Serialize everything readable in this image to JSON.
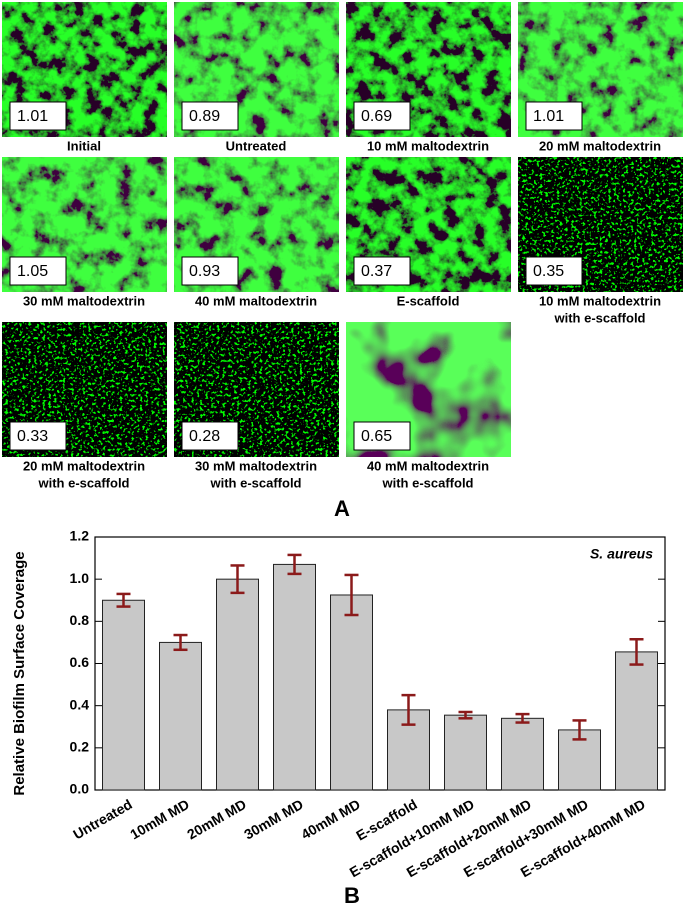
{
  "panel_a": {
    "label": "A",
    "images": [
      {
        "value_label": "1.01",
        "caption": [
          "Initial"
        ]
      },
      {
        "value_label": "0.89",
        "caption": [
          "Untreated"
        ]
      },
      {
        "value_label": "0.69",
        "caption": [
          "10 mM maltodextrin"
        ]
      },
      {
        "value_label": "1.01",
        "caption": [
          "20 mM maltodextrin"
        ]
      },
      {
        "value_label": "1.05",
        "caption": [
          "30 mM maltodextrin"
        ]
      },
      {
        "value_label": "0.93",
        "caption": [
          "40 mM maltodextrin"
        ]
      },
      {
        "value_label": "0.37",
        "caption": [
          "E-scaffold"
        ]
      },
      {
        "value_label": "0.35",
        "caption": [
          "10 mM maltodextrin",
          "with e-scaffold"
        ]
      },
      {
        "value_label": "0.33",
        "caption": [
          "20 mM maltodextrin",
          "with e-scaffold"
        ]
      },
      {
        "value_label": "0.28",
        "caption": [
          "30 mM maltodextrin",
          "with e-scaffold"
        ]
      },
      {
        "value_label": "0.65",
        "caption": [
          "40 mM maltodextrin",
          "with e-scaffold"
        ]
      }
    ]
  },
  "chart_data": {
    "type": "bar",
    "label": "B",
    "ylabel": "Relative Biofilm Surface Coverage",
    "annotation": "S. aureus",
    "categories": [
      "Untreated",
      "10mM MD",
      "20mM MD",
      "30mM MD",
      "40mM MD",
      "E-scaffold",
      "E-scaffold+10mM MD",
      "E-scaffold+20mM MD",
      "E-scaffold+30mM MD",
      "E-scaffold+40mM MD"
    ],
    "values": [
      0.9,
      0.7,
      1.0,
      1.07,
      0.925,
      0.38,
      0.355,
      0.34,
      0.285,
      0.655
    ],
    "errors": [
      0.03,
      0.035,
      0.065,
      0.045,
      0.095,
      0.07,
      0.015,
      0.02,
      0.045,
      0.06
    ],
    "color": "#c8c8c8",
    "error_color": "#8b1a1a",
    "ylim": [
      0,
      1.2
    ],
    "yticks": [
      {
        "value": 0,
        "label": "0.0"
      },
      0.2,
      0.4,
      0.6,
      0.8,
      {
        "value": 1,
        "label": "1.0"
      },
      1.2
    ]
  }
}
